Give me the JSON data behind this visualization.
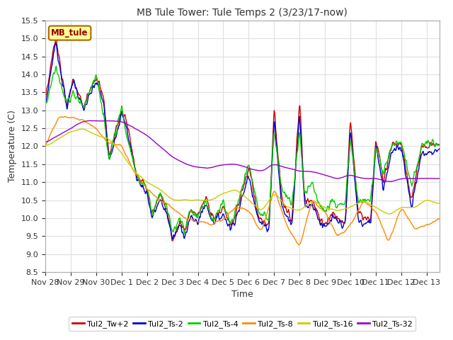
{
  "title": "MB Tule Tower: Tule Temps 2 (3/23/17-now)",
  "xlabel": "Time",
  "ylabel": "Temperature (C)",
  "ylim": [
    8.5,
    15.5
  ],
  "yticks": [
    8.5,
    9.0,
    9.5,
    10.0,
    10.5,
    11.0,
    11.5,
    12.0,
    12.5,
    13.0,
    13.5,
    14.0,
    14.5,
    15.0,
    15.5
  ],
  "series_colors": [
    "#cc0000",
    "#0000cc",
    "#00cc00",
    "#ff8800",
    "#cccc00",
    "#9900cc"
  ],
  "series_labels": [
    "Tul2_Tw+2",
    "Tul2_Ts-2",
    "Tul2_Ts-4",
    "Tul2_Ts-8",
    "Tul2_Ts-16",
    "Tul2_Ts-32"
  ],
  "bg_color": "#ffffff",
  "grid_color": "#e0e0e0",
  "label_box_color": "#ffff99",
  "label_box_edge": "#cc0000",
  "label_text": "MB_tule",
  "xtick_labels": [
    "Nov 28",
    "Nov 29",
    "Nov 30",
    "Dec 1",
    "Dec 2",
    "Dec 3",
    "Dec 4",
    "Dec 5",
    "Dec 6",
    "Dec 7",
    "Dec 8",
    "Dec 9",
    "Dec 10",
    "Dec 11",
    "Dec 12",
    "Dec 13"
  ]
}
